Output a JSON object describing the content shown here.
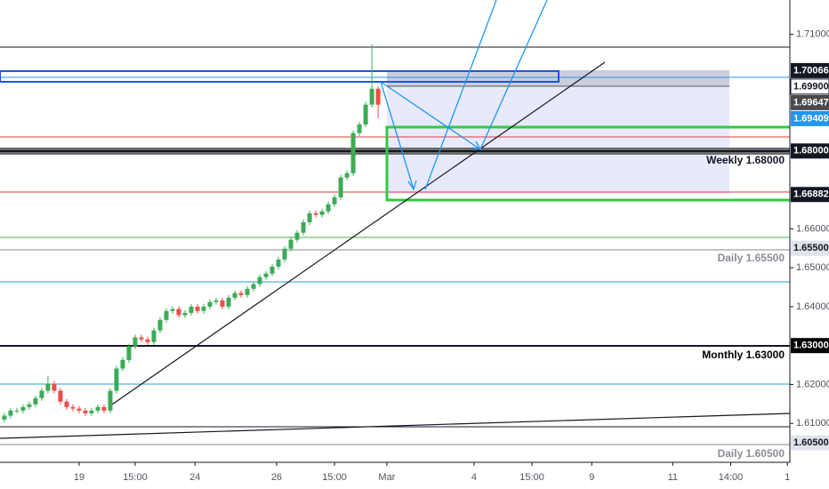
{
  "chart_data": {
    "type": "candlestick",
    "up_color": "#3cab57",
    "down_color": "#ee4b4b",
    "open": [
      1.611,
      1.612,
      1.6133,
      1.6133,
      1.6142,
      1.6149,
      1.6165,
      1.6184,
      1.6202,
      1.6184,
      1.6156,
      1.6142,
      1.6138,
      1.6133,
      1.6126,
      1.6133,
      1.6142,
      1.6133,
      1.6184,
      1.6241,
      1.6263,
      1.6298,
      1.6321,
      1.6316,
      1.6309,
      1.6339,
      1.6366,
      1.6389,
      1.6394,
      1.6378,
      1.6384,
      1.64,
      1.6389,
      1.64,
      1.6412,
      1.6416,
      1.64,
      1.6423,
      1.6435,
      1.643,
      1.6446,
      1.6458,
      1.6476,
      1.6485,
      1.6503,
      1.6521,
      1.6549,
      1.6572,
      1.659,
      1.6617,
      1.664,
      1.6636,
      1.6645,
      1.6663,
      1.6681,
      1.6732,
      1.6743,
      1.6846,
      1.6868,
      1.6919,
      1.696
    ],
    "high": [
      1.6127,
      1.614,
      1.614,
      1.6149,
      1.6156,
      1.6172,
      1.6191,
      1.6222,
      1.6209,
      1.6191,
      1.6163,
      1.6149,
      1.6145,
      1.614,
      1.614,
      1.6149,
      1.6149,
      1.6191,
      1.6248,
      1.627,
      1.6305,
      1.6328,
      1.6328,
      1.6323,
      1.6346,
      1.6373,
      1.6396,
      1.6401,
      1.6401,
      1.6391,
      1.6407,
      1.6407,
      1.6407,
      1.6419,
      1.6423,
      1.6423,
      1.643,
      1.6442,
      1.6442,
      1.6453,
      1.6465,
      1.6483,
      1.6492,
      1.651,
      1.6528,
      1.6556,
      1.6579,
      1.6597,
      1.6624,
      1.6647,
      1.6647,
      1.6652,
      1.667,
      1.6688,
      1.6739,
      1.675,
      1.6853,
      1.6875,
      1.6926,
      1.7074,
      1.6967
    ],
    "low": [
      1.6103,
      1.6113,
      1.6126,
      1.6126,
      1.6135,
      1.6142,
      1.6158,
      1.6177,
      1.6177,
      1.6149,
      1.6135,
      1.6131,
      1.6126,
      1.6119,
      1.6119,
      1.6126,
      1.6126,
      1.6126,
      1.6177,
      1.6234,
      1.6256,
      1.6291,
      1.6309,
      1.6302,
      1.6302,
      1.6332,
      1.6359,
      1.6382,
      1.6371,
      1.6371,
      1.6377,
      1.6382,
      1.6382,
      1.6393,
      1.6405,
      1.6393,
      1.6393,
      1.6416,
      1.6423,
      1.6423,
      1.6439,
      1.6451,
      1.6469,
      1.6478,
      1.6496,
      1.6514,
      1.6542,
      1.6565,
      1.6583,
      1.661,
      1.6629,
      1.6629,
      1.6638,
      1.6656,
      1.6674,
      1.6725,
      1.6736,
      1.6839,
      1.6861,
      1.6912,
      1.6885
    ],
    "close": [
      1.612,
      1.6133,
      1.6133,
      1.6142,
      1.6149,
      1.6165,
      1.6184,
      1.6202,
      1.6184,
      1.6156,
      1.6142,
      1.6138,
      1.6133,
      1.6126,
      1.6133,
      1.6142,
      1.6133,
      1.6184,
      1.6241,
      1.6263,
      1.6298,
      1.6321,
      1.6316,
      1.6309,
      1.6339,
      1.6366,
      1.6389,
      1.6394,
      1.6378,
      1.6384,
      1.64,
      1.6389,
      1.64,
      1.6412,
      1.6416,
      1.64,
      1.6423,
      1.6435,
      1.643,
      1.6446,
      1.6458,
      1.6476,
      1.6485,
      1.6503,
      1.6521,
      1.6549,
      1.6572,
      1.659,
      1.6617,
      1.664,
      1.6636,
      1.6645,
      1.6663,
      1.6681,
      1.6732,
      1.6743,
      1.6846,
      1.6868,
      1.6919,
      1.696,
      1.6919
    ],
    "xlim": [
      -0.7,
      126.1
    ],
    "xticks": [
      {
        "value": 12,
        "label": "19"
      },
      {
        "value": 21,
        "label": "15:00"
      },
      {
        "value": 30.6,
        "label": "24"
      },
      {
        "value": 43.7,
        "label": "26"
      },
      {
        "value": 53,
        "label": "15:00"
      },
      {
        "value": 61.4,
        "label": "Mar"
      },
      {
        "value": 75.4,
        "label": "4"
      },
      {
        "value": 84.7,
        "label": "15:00"
      },
      {
        "value": 94.3,
        "label": "9"
      },
      {
        "value": 107.3,
        "label": "11"
      },
      {
        "value": 116.6,
        "label": "14:00"
      },
      {
        "value": 125.7,
        "label": "1"
      }
    ],
    "ylim": [
      1.6,
      1.7188
    ],
    "yticks": [
      {
        "value": 1.71,
        "label": "1.71000"
      },
      {
        "value": 1.66,
        "label": "1.66000"
      },
      {
        "value": 1.65,
        "label": "1.65000"
      },
      {
        "value": 1.64,
        "label": "1.64000"
      },
      {
        "value": 1.62,
        "label": "1.62000"
      },
      {
        "value": 1.61,
        "label": "1.61000"
      }
    ],
    "price_tags": [
      {
        "value": 1.70066,
        "label": "1.70066",
        "bg": "#131722",
        "fg": "#ffffff"
      },
      {
        "value": 1.699,
        "label": "1.69900",
        "bg": "#ffffff",
        "fg": "#131722"
      },
      {
        "value": 1.69647,
        "label": "1.69647",
        "bg": "#4a4a4a",
        "fg": "#ffffff"
      },
      {
        "value": 1.69409,
        "label": "1.69409",
        "bg": "#2196f3",
        "fg": "#ffffff"
      },
      {
        "value": 1.68,
        "label": "1.68000",
        "bg": "#131722",
        "fg": "#ffffff"
      },
      {
        "value": 1.66882,
        "label": "1.66882",
        "bg": "#131722",
        "fg": "#ffffff"
      },
      {
        "value": 1.655,
        "label": "1.65500",
        "bg": "#e0e3eb",
        "fg": "#131722"
      },
      {
        "value": 1.63,
        "label": "1.63000",
        "bg": "#000000",
        "fg": "#ffffff"
      },
      {
        "value": 1.605,
        "label": "1.60500",
        "bg": "#e0e3eb",
        "fg": "#131722"
      }
    ],
    "annotations": [
      "Weekly 1.68000",
      "Daily 1.65500",
      "Monthly 1.63000",
      "Daily 1.60500"
    ]
  }
}
